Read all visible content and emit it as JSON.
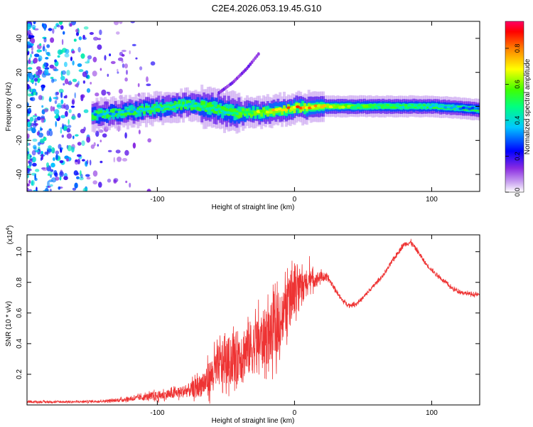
{
  "figure_title": "C2E4.2026.053.19.45.G10",
  "chart_data": [
    {
      "type": "heatmap",
      "title": "C2E4.2026.053.19.45.G10",
      "xlabel": "Height of straight line (km)",
      "ylabel": "Frequency (Hz)",
      "xlim": [
        -195,
        135
      ],
      "ylim": [
        -50,
        50
      ],
      "xticks": [
        -100,
        0,
        100
      ],
      "xtick_labels": [
        "-100",
        "0",
        "100"
      ],
      "yticks": [
        -40,
        -20,
        0,
        20,
        40
      ],
      "ytick_labels": [
        "-40",
        "-20",
        "0",
        "20",
        "40"
      ],
      "colorbar": {
        "label": "Normalized spectral amplitude",
        "range": [
          0,
          0.95
        ],
        "ticks": [
          0,
          0.2,
          0.4,
          0.6,
          0.8
        ],
        "tick_labels": [
          "0.0",
          "0.2",
          "0.4",
          "0.6",
          "0.8"
        ],
        "colormap": [
          "#ffffff",
          "#8a2be2",
          "#0000ff",
          "#00ffff",
          "#00ff00",
          "#ffff00",
          "#ff8000",
          "#ff0000",
          "#ff0066"
        ]
      },
      "ridge": {
        "description_free": true,
        "x": [
          -145,
          -120,
          -100,
          -80,
          -60,
          -50,
          -40,
          -20,
          0,
          20,
          40,
          60,
          80,
          100,
          120,
          135
        ],
        "freq": [
          -5,
          -3,
          -1,
          1,
          -1,
          -3,
          -4,
          -3,
          -1,
          0,
          0,
          0,
          0,
          0,
          -1,
          -2
        ],
        "amplitude": [
          0.35,
          0.4,
          0.45,
          0.45,
          0.5,
          0.45,
          0.6,
          0.7,
          0.85,
          0.75,
          0.6,
          0.55,
          0.5,
          0.45,
          0.35,
          0.3
        ]
      },
      "branch": {
        "x": [
          -55,
          -45,
          -35,
          -25
        ],
        "freq": [
          8,
          14,
          22,
          32
        ]
      }
    },
    {
      "type": "line",
      "xlabel": "Height of straight line (km)",
      "ylabel": "SNR (10 * v/v)",
      "yscale_label": "(x10",
      "yscale_exp": "4",
      "yscale_close": ")",
      "xlim": [
        -195,
        135
      ],
      "ylim": [
        0,
        1.11
      ],
      "xticks": [
        -100,
        0,
        100
      ],
      "xtick_labels": [
        "-100",
        "0",
        "100"
      ],
      "yticks": [
        0.2,
        0.4,
        0.6,
        0.8,
        1.0
      ],
      "ytick_labels": [
        "0.2",
        "0.4",
        "0.6",
        "0.8",
        "1.0"
      ],
      "series": [
        {
          "name": "SNR",
          "color": "#ee3333",
          "x": [
            -195,
            -180,
            -160,
            -140,
            -130,
            -120,
            -110,
            -100,
            -90,
            -80,
            -75,
            -70,
            -65,
            -60,
            -55,
            -50,
            -45,
            -40,
            -35,
            -30,
            -25,
            -20,
            -15,
            -10,
            -5,
            0,
            5,
            10,
            15,
            20,
            25,
            30,
            35,
            40,
            45,
            50,
            55,
            60,
            65,
            70,
            75,
            80,
            85,
            90,
            95,
            100,
            105,
            110,
            115,
            120,
            125,
            130,
            135
          ],
          "values": [
            0.02,
            0.02,
            0.02,
            0.025,
            0.03,
            0.04,
            0.05,
            0.06,
            0.07,
            0.09,
            0.1,
            0.12,
            0.15,
            0.2,
            0.26,
            0.28,
            0.3,
            0.33,
            0.36,
            0.38,
            0.42,
            0.45,
            0.48,
            0.55,
            0.65,
            0.72,
            0.76,
            0.8,
            0.82,
            0.84,
            0.82,
            0.75,
            0.68,
            0.65,
            0.66,
            0.7,
            0.75,
            0.8,
            0.85,
            0.92,
            0.99,
            1.05,
            1.06,
            1.0,
            0.93,
            0.88,
            0.84,
            0.8,
            0.76,
            0.74,
            0.73,
            0.72,
            0.72
          ],
          "noise": [
            0.006,
            0.006,
            0.006,
            0.008,
            0.01,
            0.015,
            0.02,
            0.03,
            0.03,
            0.04,
            0.05,
            0.07,
            0.09,
            0.12,
            0.14,
            0.15,
            0.16,
            0.17,
            0.18,
            0.18,
            0.18,
            0.19,
            0.2,
            0.18,
            0.16,
            0.12,
            0.1,
            0.08,
            0.05,
            0.03,
            0.02,
            0.015,
            0.012,
            0.012,
            0.012,
            0.012,
            0.012,
            0.012,
            0.012,
            0.014,
            0.015,
            0.015,
            0.015,
            0.015,
            0.014,
            0.013,
            0.012,
            0.012,
            0.012,
            0.012,
            0.012,
            0.012,
            0.012
          ]
        }
      ]
    }
  ]
}
